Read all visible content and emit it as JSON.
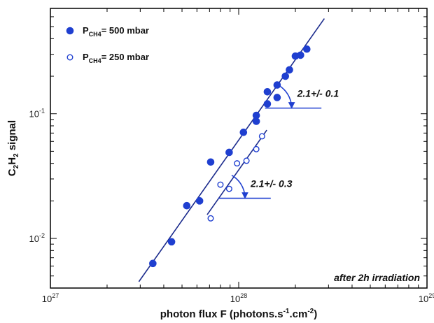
{
  "chart_data": {
    "type": "scatter",
    "xscale": "log",
    "yscale": "log",
    "xlim": [
      1e+27,
      1e+29
    ],
    "ylim": [
      0.004,
      0.7
    ],
    "xlabel": "photon flux F (photons.s-1.cm-2)",
    "ylabel": "C2H2 signal",
    "xlabel_parts": {
      "main": "photon flux F (photons.s",
      "sup1": "-1",
      "mid": ".cm",
      "sup2": "-2",
      "end": ")"
    },
    "ylabel_parts": {
      "c": "C",
      "sub1": "2",
      "h": "H",
      "sub2": "2",
      "rest": " signal"
    },
    "xticks": [
      {
        "value": 1e+27,
        "base": "10",
        "exp": "27"
      },
      {
        "value": 1e+28,
        "base": "10",
        "exp": "28"
      },
      {
        "value": 1e+29,
        "base": "10",
        "exp": "29"
      }
    ],
    "yticks": [
      {
        "value": 0.01,
        "base": "10",
        "exp": "-2"
      },
      {
        "value": 0.1,
        "base": "10",
        "exp": "-1"
      }
    ],
    "legend": [
      {
        "prefix": "P",
        "sub": "CH4",
        "label": "= 500 mbar",
        "marker": "filled"
      },
      {
        "prefix": "P",
        "sub": "CH4",
        "label": "= 250 mbar",
        "marker": "open"
      }
    ],
    "series": [
      {
        "marker": "filled",
        "color": "#1f3fd0",
        "points": [
          [
            3.5e+27,
            0.0063
          ],
          [
            4.4e+27,
            0.0094
          ],
          [
            5.3e+27,
            0.0183
          ],
          [
            6.2e+27,
            0.02
          ],
          [
            7.1e+27,
            0.041
          ],
          [
            8.9e+27,
            0.049
          ],
          [
            1.06e+28,
            0.071
          ],
          [
            1.24e+28,
            0.087
          ],
          [
            1.24e+28,
            0.097
          ],
          [
            1.42e+28,
            0.12
          ],
          [
            1.42e+28,
            0.15
          ],
          [
            1.6e+28,
            0.135
          ],
          [
            1.6e+28,
            0.17
          ],
          [
            1.77e+28,
            0.2
          ],
          [
            1.86e+28,
            0.225
          ],
          [
            2e+28,
            0.29
          ],
          [
            2.13e+28,
            0.295
          ],
          [
            2.3e+28,
            0.33
          ]
        ],
        "fit": {
          "x": [
            2.95e+27,
            2.85e+28
          ],
          "y": [
            0.0045,
            0.58
          ]
        }
      },
      {
        "marker": "open",
        "color": "#1f3fd0",
        "points": [
          [
            7.1e+27,
            0.0145
          ],
          [
            8e+27,
            0.027
          ],
          [
            8.9e+27,
            0.025
          ],
          [
            9.8e+27,
            0.04
          ],
          [
            1.1e+28,
            0.042
          ],
          [
            1.24e+28,
            0.052
          ],
          [
            1.33e+28,
            0.066
          ]
        ],
        "fit": {
          "x": [
            6.8e+27,
            1.41e+28
          ],
          "y": [
            0.0155,
            0.074
          ]
        }
      }
    ],
    "slope_annotations": [
      {
        "text": "2.1+/- 0.1",
        "x": [
          1.38e+28,
          2.75e+28
        ],
        "y": 0.111
      },
      {
        "text": "2.1+/- 0.3",
        "x": [
          7.8e+27,
          1.48e+28
        ],
        "y": 0.021
      }
    ],
    "annotation": "after 2h irradiation",
    "colors": {
      "data": "#1f3fd0",
      "fit": "#1a2a8c",
      "axes": "#000000"
    }
  }
}
